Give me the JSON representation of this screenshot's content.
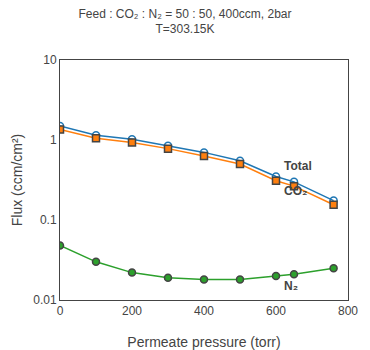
{
  "chart_data": {
    "type": "line",
    "title": "Feed : CO₂ : N₂ = 50 : 50, 400ccm, 2bar",
    "subtitle": "T=303.15K",
    "x_label": "Permeate pressure (torr)",
    "y_label": "Flux (ccm/cm²)",
    "log": "y",
    "grid": false,
    "xlim": [
      0,
      800
    ],
    "xticks": [
      0,
      200,
      400,
      600,
      800
    ],
    "ylim": [
      0.01,
      10
    ],
    "yticks": [
      0.01,
      0.1,
      1,
      10
    ],
    "series": [
      {
        "name": "Total",
        "marker": "circle-open",
        "line_style": "solid",
        "x": [
          0,
          100,
          200,
          300,
          400,
          500,
          600,
          650,
          760
        ],
        "values": [
          1.5,
          1.15,
          1.02,
          0.85,
          0.7,
          0.55,
          0.35,
          0.3,
          0.175
        ]
      },
      {
        "name": "CO₂",
        "marker": "square",
        "line_style": "solid",
        "x": [
          0,
          100,
          200,
          300,
          400,
          500,
          600,
          650,
          760
        ],
        "values": [
          1.35,
          1.05,
          0.93,
          0.78,
          0.63,
          0.5,
          0.31,
          0.265,
          0.155
        ]
      },
      {
        "name": "N₂",
        "marker": "circle",
        "line_style": "solid",
        "x": [
          0,
          100,
          200,
          300,
          400,
          500,
          600,
          650,
          760
        ],
        "values": [
          0.048,
          0.03,
          0.022,
          0.019,
          0.018,
          0.018,
          0.02,
          0.021,
          0.025
        ]
      }
    ]
  }
}
